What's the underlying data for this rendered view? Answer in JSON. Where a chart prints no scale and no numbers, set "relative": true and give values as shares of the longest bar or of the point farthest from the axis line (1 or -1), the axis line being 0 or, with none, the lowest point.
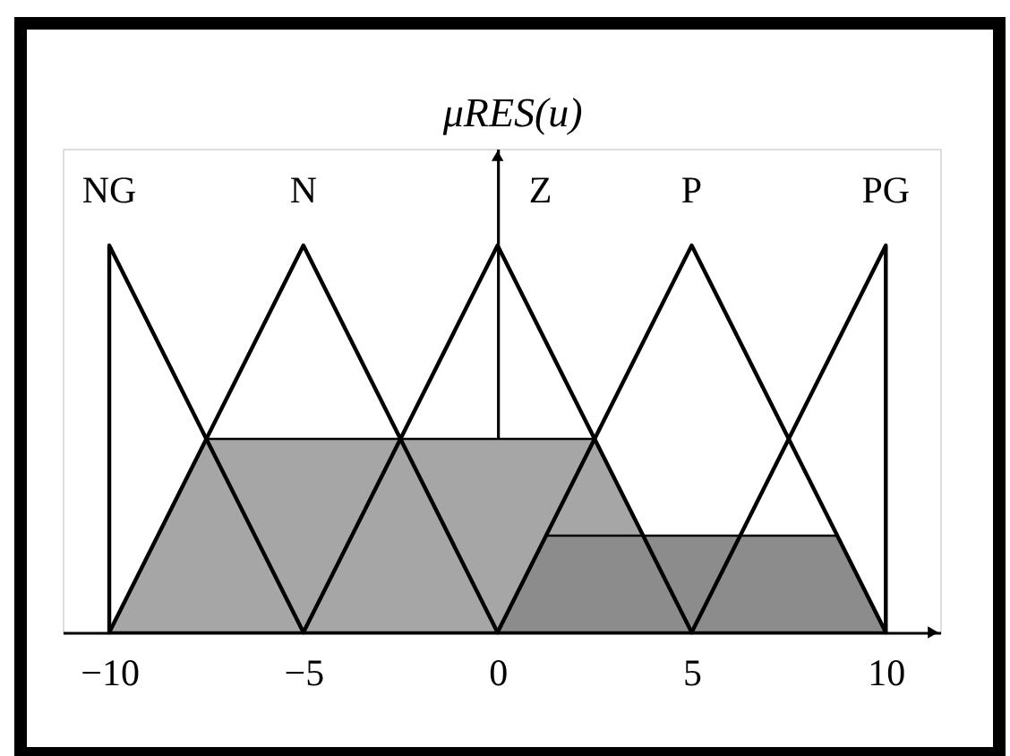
{
  "chart_data": {
    "type": "line",
    "ylabel": "μRES(u)",
    "xlim": [
      -11.2,
      11.4
    ],
    "xticks": [
      -10,
      -5,
      0,
      5,
      10
    ],
    "relative": true,
    "line_style": "solid",
    "series": [
      {
        "name": "NG",
        "color": "#000000",
        "x": [
          -10,
          -10,
          -5
        ],
        "values": [
          0,
          1,
          0
        ]
      },
      {
        "name": "N",
        "color": "#000000",
        "x": [
          -10,
          -5,
          0
        ],
        "values": [
          0,
          1,
          0
        ]
      },
      {
        "name": "Z",
        "color": "#000000",
        "x": [
          -5,
          0,
          5
        ],
        "values": [
          0,
          1,
          0
        ]
      },
      {
        "name": "P",
        "color": "#000000",
        "x": [
          0,
          5,
          10
        ],
        "values": [
          0,
          1,
          0
        ]
      },
      {
        "name": "PG",
        "color": "#000000",
        "x": [
          5,
          10,
          10
        ],
        "values": [
          0,
          1,
          0
        ]
      },
      {
        "type": "area",
        "color": "#a6a6a6",
        "x": [
          -10,
          -7.5,
          2.5,
          5
        ],
        "values": [
          0,
          0.5,
          0.5,
          0
        ]
      },
      {
        "type": "area",
        "color": "#8c8c8c",
        "x": [
          0,
          1.25,
          8.75,
          10
        ],
        "values": [
          0,
          0.25,
          0.25,
          0
        ]
      }
    ]
  }
}
